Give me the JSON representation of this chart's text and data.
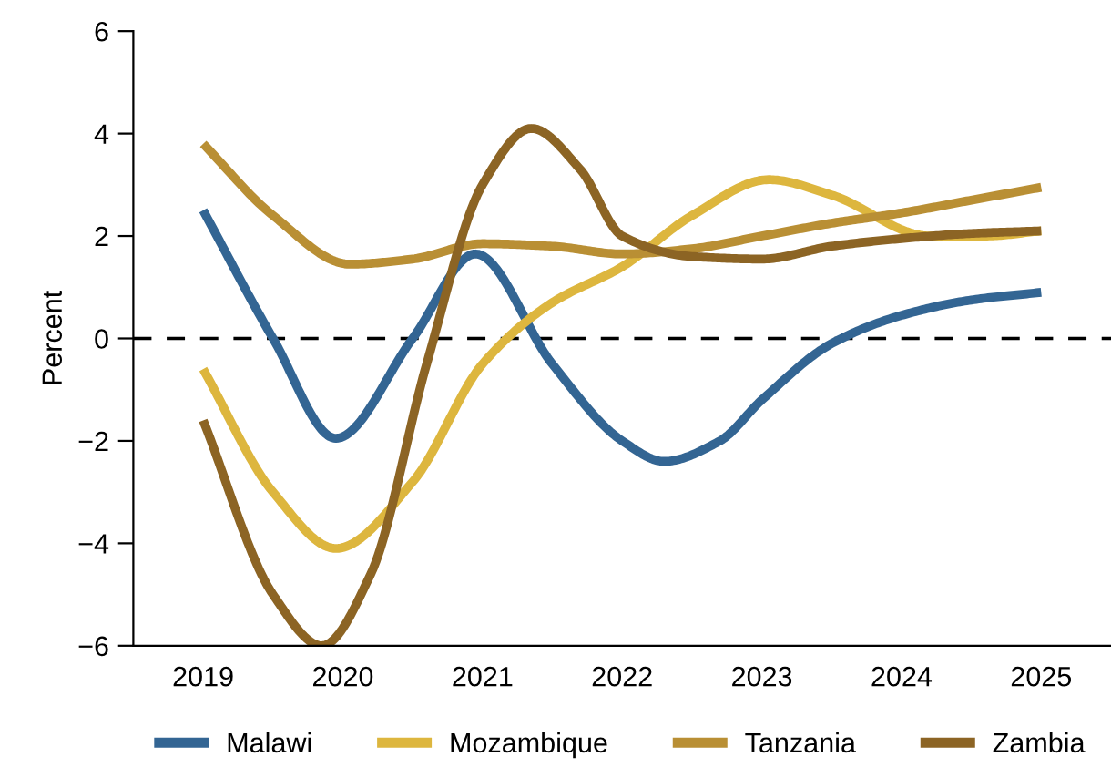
{
  "chart_data": {
    "type": "line",
    "ylabel": "Percent",
    "xlim": [
      2018.5,
      2025.5
    ],
    "xticks": [
      2019,
      2020,
      2021,
      2022,
      2023,
      2024,
      2025
    ],
    "ylim": [
      -6,
      6
    ],
    "yticks": [
      {
        "value": -6,
        "label": "−6"
      },
      {
        "value": -4,
        "label": "−4"
      },
      {
        "value": -2,
        "label": "−2"
      },
      0,
      2,
      4,
      6
    ],
    "grid": false,
    "legend": "bottom",
    "line_style": "solid",
    "marker": "none",
    "ref_lines": [
      {
        "axis": "y",
        "value": 0,
        "color": "#000000",
        "line_style": "dashed"
      }
    ],
    "series": [
      {
        "name": "Malawi",
        "color": "#336593",
        "x": [
          2019,
          2019.5,
          2019.95,
          2020.5,
          2020.95,
          2021.5,
          2022,
          2022.3,
          2022.7,
          2023,
          2023.5,
          2024,
          2024.5,
          2025
        ],
        "values": [
          2.5,
          0.0,
          -1.95,
          0.0,
          1.65,
          -0.5,
          -2.0,
          -2.4,
          -2.0,
          -1.2,
          -0.1,
          0.45,
          0.75,
          0.9
        ]
      },
      {
        "name": "Mozambique",
        "color": "#ddb63e",
        "x": [
          2019,
          2019.5,
          2019.95,
          2020.5,
          2021,
          2021.5,
          2022,
          2022.5,
          2023.05,
          2023.5,
          2024.2,
          2024.6,
          2025
        ],
        "values": [
          -0.6,
          -3.0,
          -4.1,
          -2.8,
          -0.5,
          0.7,
          1.4,
          2.4,
          3.1,
          2.8,
          2.0,
          2.0,
          2.1
        ]
      },
      {
        "name": "Tanzania",
        "color": "#b98f34",
        "x": [
          2019,
          2019.5,
          2020.05,
          2020.5,
          2021,
          2021.5,
          2022,
          2022.5,
          2023,
          2023.5,
          2024,
          2024.5,
          2025
        ],
        "values": [
          3.8,
          2.4,
          1.45,
          1.55,
          1.85,
          1.8,
          1.65,
          1.75,
          2.0,
          2.25,
          2.45,
          2.7,
          2.95
        ]
      },
      {
        "name": "Zambia",
        "color": "#8c6424",
        "x": [
          2019,
          2019.5,
          2019.85,
          2020.2,
          2020.6,
          2021,
          2021.35,
          2021.7,
          2022,
          2022.5,
          2023,
          2023.5,
          2024,
          2024.5,
          2025
        ],
        "values": [
          -1.6,
          -5.0,
          -6.0,
          -4.6,
          -0.5,
          3.0,
          4.1,
          3.3,
          2.0,
          1.6,
          1.55,
          1.8,
          1.95,
          2.05,
          2.1
        ]
      }
    ]
  }
}
